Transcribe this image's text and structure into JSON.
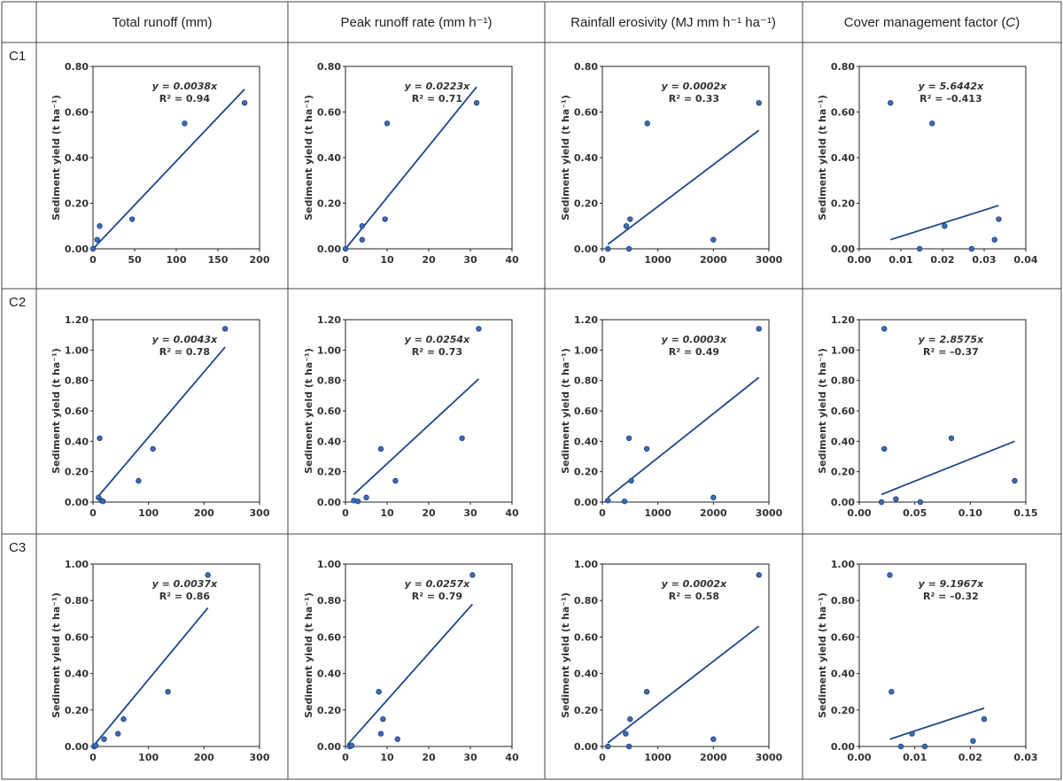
{
  "headers": {
    "col1": "Total runoff (mm)",
    "col2": "Peak runoff rate (mm h⁻¹)",
    "col3": "Rainfall erosivity (MJ mm h⁻¹ ha⁻¹)",
    "col4_main": "Cover management factor (",
    "col4_italic": "C",
    "col4_close": ")"
  },
  "rows": [
    "C1",
    "C2",
    "C3"
  ],
  "y_axis_label": "Sediment yield (t ha⁻¹)",
  "colors": {
    "point": "#3b6bb5",
    "line": "#1f4788"
  },
  "chart_data": [
    {
      "id": "c1-runoff",
      "type": "scatter",
      "row": 0,
      "col": 0,
      "xlim": [
        0,
        200
      ],
      "ylim": [
        0,
        0.8
      ],
      "xticks": [
        "0",
        "50",
        "100",
        "150",
        "200"
      ],
      "yticks": [
        "0.00",
        "0.20",
        "0.40",
        "0.60",
        "0.80"
      ],
      "x": [
        0,
        5,
        8,
        47,
        110,
        182
      ],
      "y": [
        0,
        0.04,
        0.1,
        0.13,
        0.55,
        0.64
      ],
      "fit": {
        "x": [
          0,
          182
        ],
        "y": [
          0,
          0.7
        ]
      },
      "equation": "y = 0.0038x",
      "r2": "R² = 0.94"
    },
    {
      "id": "c1-peak",
      "type": "scatter",
      "row": 0,
      "col": 1,
      "xlim": [
        0,
        40
      ],
      "ylim": [
        0,
        0.8
      ],
      "xticks": [
        "0",
        "10",
        "20",
        "30",
        "40"
      ],
      "yticks": [
        "0.00",
        "0.20",
        "0.40",
        "0.60",
        "0.80"
      ],
      "x": [
        0,
        4,
        4,
        9.5,
        10,
        31.5
      ],
      "y": [
        0,
        0.04,
        0.1,
        0.13,
        0.55,
        0.64
      ],
      "fit": {
        "x": [
          0,
          31.5
        ],
        "y": [
          0,
          0.71
        ]
      },
      "equation": "y = 0.0223x",
      "r2": "R² = 0.71"
    },
    {
      "id": "c1-erosivity",
      "type": "scatter",
      "row": 0,
      "col": 2,
      "xlim": [
        0,
        3000
      ],
      "ylim": [
        0,
        0.8
      ],
      "xticks": [
        "0",
        "1000",
        "2000",
        "3000"
      ],
      "yticks": [
        "0.00",
        "0.20",
        "0.40",
        "0.60",
        "0.80"
      ],
      "x": [
        100,
        430,
        480,
        500,
        810,
        2000,
        2820
      ],
      "y": [
        0,
        0.1,
        0,
        0.13,
        0.55,
        0.04,
        0.64
      ],
      "fit": {
        "x": [
          100,
          2820
        ],
        "y": [
          0.02,
          0.52
        ]
      },
      "equation": "y = 0.0002x",
      "r2": "R² = 0.33"
    },
    {
      "id": "c1-cover",
      "type": "scatter",
      "row": 0,
      "col": 3,
      "xlim": [
        0,
        0.04
      ],
      "ylim": [
        0,
        0.8
      ],
      "xticks": [
        "0.00",
        "0.01",
        "0.02",
        "0.03",
        "0.04"
      ],
      "yticks": [
        "0.00",
        "0.20",
        "0.40",
        "0.60",
        "0.80"
      ],
      "x": [
        0.0075,
        0.0145,
        0.0175,
        0.0205,
        0.027,
        0.0325,
        0.0335
      ],
      "y": [
        0.64,
        0,
        0.55,
        0.1,
        0,
        0.04,
        0.13
      ],
      "fit": {
        "x": [
          0.0075,
          0.0335
        ],
        "y": [
          0.04,
          0.19
        ]
      },
      "equation": "y = 5.6442x",
      "r2": "R² = –0.413"
    },
    {
      "id": "c2-runoff",
      "type": "scatter",
      "row": 1,
      "col": 0,
      "xlim": [
        0,
        300
      ],
      "ylim": [
        0,
        1.2
      ],
      "xticks": [
        "0",
        "100",
        "200",
        "300"
      ],
      "yticks": [
        "0.00",
        "0.20",
        "0.40",
        "0.60",
        "0.80",
        "1.00",
        "1.20"
      ],
      "x": [
        10,
        12,
        15,
        18,
        82,
        108,
        238
      ],
      "y": [
        0.03,
        0.42,
        0.01,
        0.005,
        0.14,
        0.35,
        1.14
      ],
      "fit": {
        "x": [
          10,
          238
        ],
        "y": [
          0.04,
          1.02
        ]
      },
      "equation": "y = 0.0043x",
      "r2": "R² = 0.78"
    },
    {
      "id": "c2-peak",
      "type": "scatter",
      "row": 1,
      "col": 1,
      "xlim": [
        0,
        40
      ],
      "ylim": [
        0,
        1.2
      ],
      "xticks": [
        "0",
        "10",
        "20",
        "30",
        "40"
      ],
      "yticks": [
        "0.00",
        "0.20",
        "0.40",
        "0.60",
        "0.80",
        "1.00",
        "1.20"
      ],
      "x": [
        2,
        3,
        5,
        8.5,
        12,
        28,
        32
      ],
      "y": [
        0.01,
        0.005,
        0.03,
        0.35,
        0.14,
        0.42,
        1.14
      ],
      "fit": {
        "x": [
          2,
          32
        ],
        "y": [
          0.05,
          0.81
        ]
      },
      "equation": "y = 0.0254x",
      "r2": "R² = 0.73"
    },
    {
      "id": "c2-erosivity",
      "type": "scatter",
      "row": 1,
      "col": 2,
      "xlim": [
        0,
        3000
      ],
      "ylim": [
        0,
        1.2
      ],
      "xticks": [
        "0",
        "1000",
        "2000",
        "3000"
      ],
      "yticks": [
        "0.00",
        "0.20",
        "0.40",
        "0.60",
        "0.80",
        "1.00",
        "1.20"
      ],
      "x": [
        100,
        400,
        480,
        520,
        800,
        2000,
        2820
      ],
      "y": [
        0.01,
        0.005,
        0.42,
        0.14,
        0.35,
        0.03,
        1.14
      ],
      "fit": {
        "x": [
          100,
          2820
        ],
        "y": [
          0.03,
          0.82
        ]
      },
      "equation": "y = 0.0003x",
      "r2": "R² = 0.49"
    },
    {
      "id": "c2-cover",
      "type": "scatter",
      "row": 1,
      "col": 3,
      "xlim": [
        0,
        0.15
      ],
      "ylim": [
        0,
        1.2
      ],
      "xticks": [
        "0.00",
        "0.05",
        "0.10",
        "0.15"
      ],
      "yticks": [
        "0.00",
        "0.20",
        "0.40",
        "0.60",
        "0.80",
        "1.00",
        "1.20"
      ],
      "x": [
        0.02,
        0.0225,
        0.0225,
        0.033,
        0.055,
        0.083,
        0.14
      ],
      "y": [
        0,
        1.14,
        0.35,
        0.02,
        0,
        0.42,
        0.14
      ],
      "fit": {
        "x": [
          0.02,
          0.14
        ],
        "y": [
          0.05,
          0.4
        ]
      },
      "equation": "y = 2.8575x",
      "r2": "R² = –0.37"
    },
    {
      "id": "c3-runoff",
      "type": "scatter",
      "row": 2,
      "col": 0,
      "xlim": [
        0,
        300
      ],
      "ylim": [
        0,
        1.0
      ],
      "xticks": [
        "0",
        "100",
        "200",
        "300"
      ],
      "yticks": [
        "0.00",
        "0.20",
        "0.40",
        "0.60",
        "0.80",
        "1.00"
      ],
      "x": [
        2,
        5,
        20,
        45,
        55,
        135,
        207
      ],
      "y": [
        0,
        0.005,
        0.04,
        0.07,
        0.15,
        0.3,
        0.94
      ],
      "fit": {
        "x": [
          0,
          207
        ],
        "y": [
          0,
          0.76
        ]
      },
      "equation": "y = 0.0037x",
      "r2": "R² = 0.86"
    },
    {
      "id": "c3-peak",
      "type": "scatter",
      "row": 2,
      "col": 1,
      "xlim": [
        0,
        40
      ],
      "ylim": [
        0,
        1.0
      ],
      "xticks": [
        "0",
        "10",
        "20",
        "30",
        "40"
      ],
      "yticks": [
        "0.00",
        "0.20",
        "0.40",
        "0.60",
        "0.80",
        "1.00"
      ],
      "x": [
        1,
        1.5,
        8,
        8.5,
        9,
        12.5,
        30.5
      ],
      "y": [
        0,
        0.005,
        0.3,
        0.07,
        0.15,
        0.04,
        0.94
      ],
      "fit": {
        "x": [
          0.5,
          30.5
        ],
        "y": [
          0.01,
          0.78
        ]
      },
      "equation": "y = 0.0257x",
      "r2": "R² = 0.79"
    },
    {
      "id": "c3-erosivity",
      "type": "scatter",
      "row": 2,
      "col": 2,
      "xlim": [
        0,
        3000
      ],
      "ylim": [
        0,
        1.0
      ],
      "xticks": [
        "0",
        "1000",
        "2000",
        "3000"
      ],
      "yticks": [
        "0.00",
        "0.20",
        "0.40",
        "0.60",
        "0.80",
        "1.00"
      ],
      "x": [
        100,
        420,
        480,
        500,
        800,
        2000,
        2820
      ],
      "y": [
        0,
        0.07,
        0,
        0.15,
        0.3,
        0.04,
        0.94
      ],
      "fit": {
        "x": [
          100,
          2820
        ],
        "y": [
          0.02,
          0.66
        ]
      },
      "equation": "y = 0.0002x",
      "r2": "R² = 0.58"
    },
    {
      "id": "c3-cover",
      "type": "scatter",
      "row": 2,
      "col": 3,
      "xlim": [
        0,
        0.03
      ],
      "ylim": [
        0,
        1.0
      ],
      "xticks": [
        "0.00",
        "0.01",
        "0.02",
        "0.03"
      ],
      "yticks": [
        "0.00",
        "0.20",
        "0.40",
        "0.60",
        "0.80",
        "1.00"
      ],
      "x": [
        0.0055,
        0.0058,
        0.0075,
        0.0095,
        0.0118,
        0.0205,
        0.0225
      ],
      "y": [
        0.94,
        0.3,
        0,
        0.07,
        0,
        0.03,
        0.15
      ],
      "fit": {
        "x": [
          0.0055,
          0.0225
        ],
        "y": [
          0.04,
          0.21
        ]
      },
      "equation": "y = 9.1967x",
      "r2": "R² = –0.32"
    }
  ]
}
